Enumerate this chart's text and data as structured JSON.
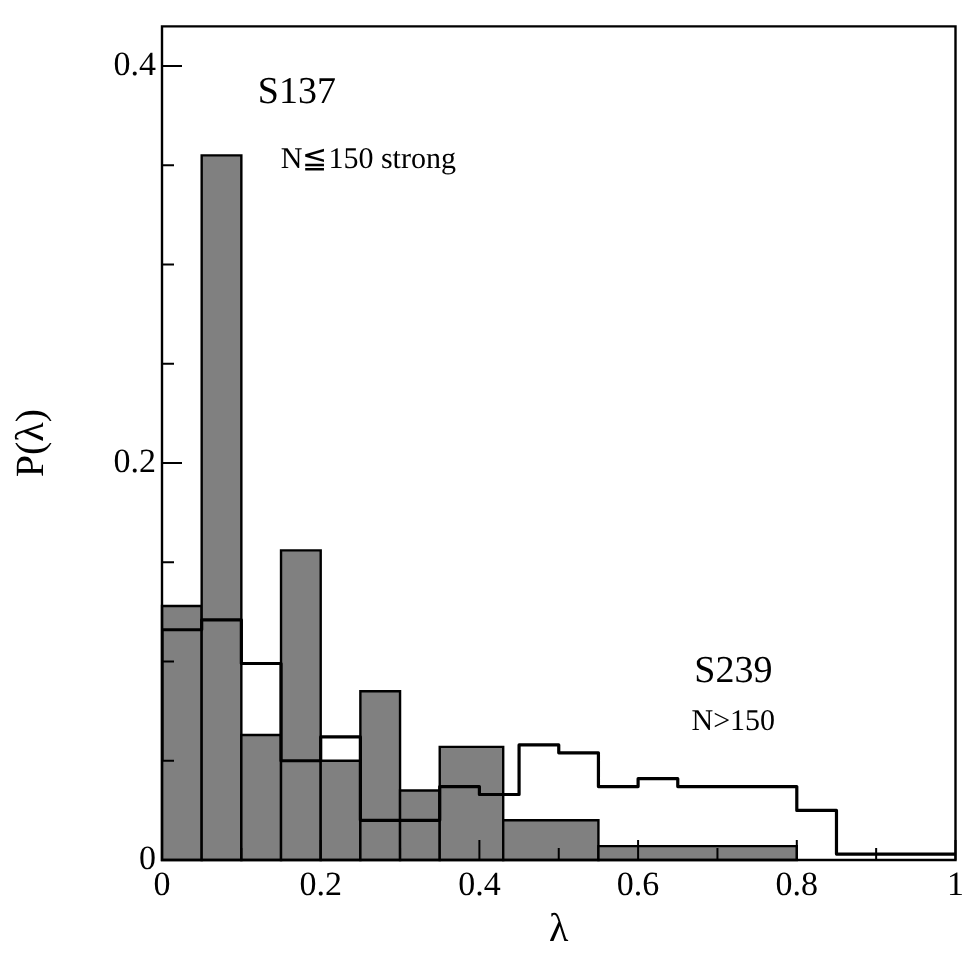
{
  "chart_data": {
    "type": "histogram",
    "xlabel": "λ",
    "ylabel": "P(λ)",
    "bins": [
      0,
      0.05,
      0.1,
      0.15,
      0.2,
      0.25,
      0.3,
      0.35,
      0.43,
      0.55,
      0.8
    ],
    "series": [
      {
        "name": "S137",
        "color": "#808080",
        "values": [
          0.128,
          0.355,
          0.063,
          0.156,
          0.05,
          0.085,
          0.035,
          0.057,
          0.02,
          0.007
        ]
      },
      {
        "name": "S239",
        "type": "step",
        "color": "#000000",
        "x": [
          0,
          0.05,
          0.1,
          0.15,
          0.2,
          0.25,
          0.35,
          0.4,
          0.45,
          0.5,
          0.55,
          0.6,
          0.65,
          0.8,
          0.85,
          0.93,
          1
        ],
        "values": [
          0.05,
          0.116,
          0.121,
          0.099,
          0.05,
          0.062,
          0.02,
          0.037,
          0.033,
          0.058,
          0.054,
          0.037,
          0.041,
          0.037,
          0.025,
          0.003,
          0.003
        ]
      }
    ],
    "xlim": [
      0,
      1
    ],
    "xticks": [
      0,
      {
        "value": 0.1,
        "label": null
      },
      0.2,
      {
        "value": 0.3,
        "label": null
      },
      0.4,
      {
        "value": 0.5,
        "label": null
      },
      0.6,
      {
        "value": 0.7,
        "label": null
      },
      0.8,
      {
        "value": 0.9,
        "label": null
      },
      1
    ],
    "ylim": [
      0,
      0.42
    ],
    "yticks": [
      0,
      {
        "value": 0.05,
        "label": null
      },
      {
        "value": 0.1,
        "label": null
      },
      {
        "value": 0.15,
        "label": null
      },
      0.2,
      {
        "value": 0.25,
        "label": null
      },
      {
        "value": 0.3,
        "label": null
      },
      {
        "value": 0.35,
        "label": null
      },
      0.4
    ],
    "legend": false,
    "annotations": [
      "N≦150 strong",
      "N>150"
    ]
  }
}
